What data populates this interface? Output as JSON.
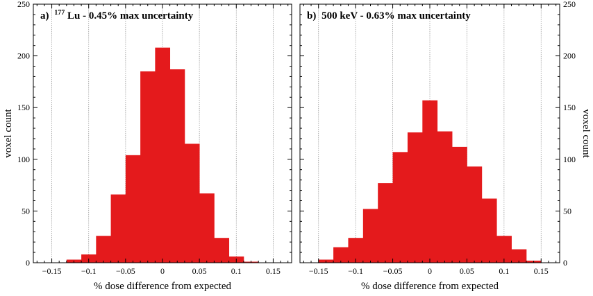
{
  "chart_data": [
    {
      "type": "bar",
      "panel_label": "a)",
      "title_isotope_mass": "177",
      "title_isotope": "Lu",
      "title_rest": " - 0.45% max uncertainty",
      "xlabel": "% dose difference from expected",
      "ylabel": "voxel count",
      "xlim": [
        -0.175,
        0.175
      ],
      "ylim": [
        0,
        250
      ],
      "xticks": [
        -0.15,
        -0.1,
        -0.05,
        0,
        0.05,
        0.1,
        0.15
      ],
      "xtick_labels": [
        "−0.15",
        "−0.1",
        "−0.05",
        "0",
        "0.05",
        "0.1",
        "0.15"
      ],
      "yticks": [
        0,
        50,
        100,
        150,
        200,
        250
      ],
      "ytick_labels": [
        "0",
        "50",
        "100",
        "150",
        "200",
        "250"
      ],
      "grid": "vertical dotted",
      "color": "#e41a1c",
      "bin_width": 0.02,
      "bins": [
        {
          "x0": -0.13,
          "x1": -0.11,
          "count": 3
        },
        {
          "x0": -0.11,
          "x1": -0.09,
          "count": 8
        },
        {
          "x0": -0.09,
          "x1": -0.07,
          "count": 26
        },
        {
          "x0": -0.07,
          "x1": -0.05,
          "count": 66
        },
        {
          "x0": -0.05,
          "x1": -0.03,
          "count": 104
        },
        {
          "x0": -0.03,
          "x1": -0.01,
          "count": 185
        },
        {
          "x0": -0.01,
          "x1": 0.01,
          "count": 208
        },
        {
          "x0": 0.01,
          "x1": 0.03,
          "count": 187
        },
        {
          "x0": 0.03,
          "x1": 0.05,
          "count": 115
        },
        {
          "x0": 0.05,
          "x1": 0.07,
          "count": 67
        },
        {
          "x0": 0.07,
          "x1": 0.09,
          "count": 24
        },
        {
          "x0": 0.09,
          "x1": 0.11,
          "count": 6
        },
        {
          "x0": 0.11,
          "x1": 0.13,
          "count": 1
        }
      ]
    },
    {
      "type": "bar",
      "panel_label": "b)",
      "title_isotope_mass": "",
      "title_isotope": "",
      "title_rest": "500 keV - 0.63% max uncertainty",
      "xlabel": "% dose difference from expected",
      "ylabel": "voxel count",
      "xlim": [
        -0.175,
        0.175
      ],
      "ylim": [
        0,
        250
      ],
      "xticks": [
        -0.15,
        -0.1,
        -0.05,
        0,
        0.05,
        0.1,
        0.15
      ],
      "xtick_labels": [
        "−0.15",
        "−0.1",
        "−0.05",
        "0",
        "0.05",
        "0.1",
        "0.15"
      ],
      "yticks": [
        0,
        50,
        100,
        150,
        200,
        250
      ],
      "ytick_labels": [
        "0",
        "50",
        "100",
        "150",
        "200",
        "250"
      ],
      "grid": "vertical dotted",
      "color": "#e41a1c",
      "bin_width": 0.02,
      "bins": [
        {
          "x0": -0.15,
          "x1": -0.13,
          "count": 3
        },
        {
          "x0": -0.13,
          "x1": -0.11,
          "count": 15
        },
        {
          "x0": -0.11,
          "x1": -0.09,
          "count": 24
        },
        {
          "x0": -0.09,
          "x1": -0.07,
          "count": 52
        },
        {
          "x0": -0.07,
          "x1": -0.05,
          "count": 77
        },
        {
          "x0": -0.05,
          "x1": -0.03,
          "count": 107
        },
        {
          "x0": -0.03,
          "x1": -0.01,
          "count": 126
        },
        {
          "x0": -0.01,
          "x1": 0.01,
          "count": 157
        },
        {
          "x0": 0.01,
          "x1": 0.03,
          "count": 127
        },
        {
          "x0": 0.03,
          "x1": 0.05,
          "count": 112
        },
        {
          "x0": 0.05,
          "x1": 0.07,
          "count": 93
        },
        {
          "x0": 0.07,
          "x1": 0.09,
          "count": 62
        },
        {
          "x0": 0.09,
          "x1": 0.11,
          "count": 26
        },
        {
          "x0": 0.11,
          "x1": 0.13,
          "count": 13
        },
        {
          "x0": 0.13,
          "x1": 0.15,
          "count": 2
        }
      ]
    }
  ]
}
